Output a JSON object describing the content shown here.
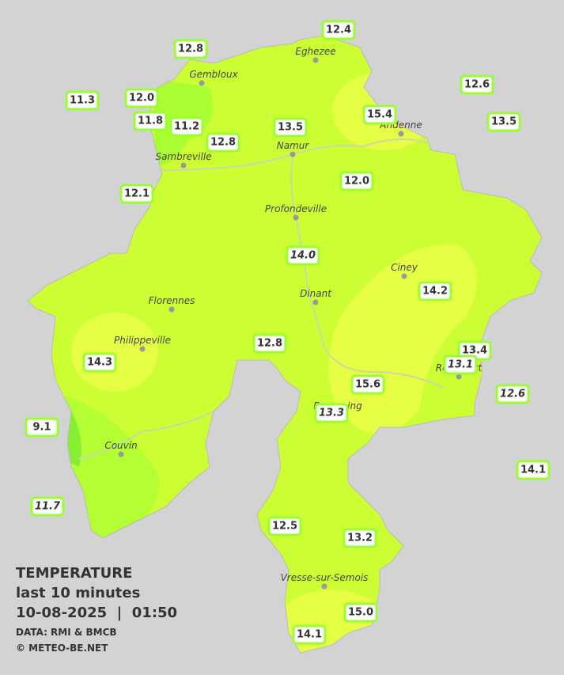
{
  "stations": [
    "12.4",
    "12.8",
    "12.6",
    "11.3",
    "12.0",
    "15.4",
    "11.8",
    "11.2",
    "13.5",
    "13.5",
    "12.8",
    "12.0",
    "12.1",
    "14.0",
    "14.2",
    "12.8",
    "13.4",
    "13.1",
    "14.3",
    "15.6",
    "12.6",
    "13.3",
    "9.1",
    "14.1",
    "11.7",
    "12.5",
    "13.2",
    "15.0",
    "14.1"
  ],
  "cities": [
    "Gembloux",
    "Eghezee",
    "Andenne",
    "Namur",
    "Sambreville",
    "Profondeville",
    "Ciney",
    "Dinant",
    "Florennes",
    "Philippeville",
    "Couvin",
    "Vresse-sur-Semois",
    "Rochefort",
    "Beauraing"
  ],
  "legend": {
    "title": "TEMPERATURE",
    "period": "last 10 minutes",
    "timestamp": "10-08-2025  |  01:50",
    "source": "DATA: RMI & BMCB",
    "copyright": "© METEO-BE.NET"
  }
}
